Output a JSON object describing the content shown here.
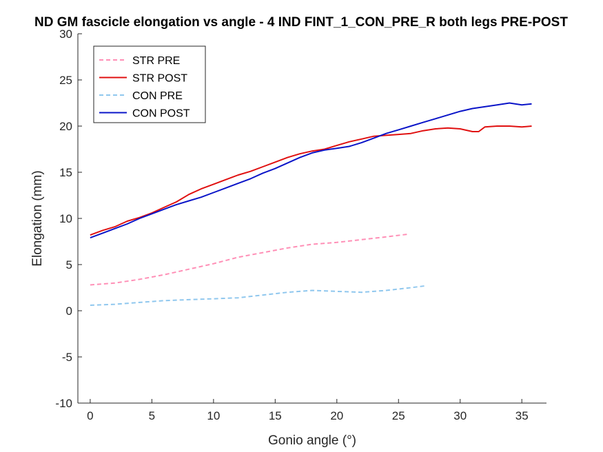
{
  "chart_data": {
    "type": "line",
    "title": "ND GM fascicle elongation vs angle - 4 IND FINT_1_CON_PRE_R both legs PRE-POST",
    "xlabel": "Gonio angle (°)",
    "ylabel": "Elongation (mm)",
    "xlim": [
      -1,
      37
    ],
    "ylim": [
      -10,
      30
    ],
    "xticks": [
      0,
      5,
      10,
      15,
      20,
      25,
      30,
      35
    ],
    "yticks": [
      -10,
      -5,
      0,
      5,
      10,
      15,
      20,
      25,
      30
    ],
    "grid": false,
    "legend_position": "top-left",
    "series": [
      {
        "name": "STR PRE",
        "color": "#ff8fb6",
        "style": "dashed",
        "x": [
          0,
          2,
          4,
          6,
          8,
          10,
          12,
          14,
          16,
          18,
          20,
          22,
          24,
          25.8
        ],
        "y": [
          2.8,
          3.0,
          3.4,
          3.9,
          4.5,
          5.1,
          5.8,
          6.3,
          6.8,
          7.2,
          7.4,
          7.7,
          8.0,
          8.3
        ]
      },
      {
        "name": "STR POST",
        "color": "#e01010",
        "style": "solid",
        "x": [
          0,
          1,
          2,
          3,
          4,
          5,
          6,
          7,
          8,
          9,
          10,
          11,
          12,
          13,
          14,
          15,
          16,
          17,
          18,
          19,
          20,
          21,
          22,
          23,
          24,
          25,
          26,
          27,
          28,
          29,
          30,
          31,
          31.5,
          32,
          33,
          34,
          35,
          35.8
        ],
        "y": [
          8.2,
          8.7,
          9.1,
          9.7,
          10.1,
          10.6,
          11.2,
          11.8,
          12.6,
          13.2,
          13.7,
          14.2,
          14.7,
          15.1,
          15.6,
          16.1,
          16.6,
          17.0,
          17.3,
          17.5,
          17.9,
          18.3,
          18.6,
          18.9,
          19.0,
          19.1,
          19.2,
          19.5,
          19.7,
          19.8,
          19.7,
          19.4,
          19.4,
          19.9,
          20.0,
          20.0,
          19.9,
          20.0
        ]
      },
      {
        "name": "CON PRE",
        "color": "#8fc7ee",
        "style": "dashed",
        "x": [
          0,
          2,
          4,
          6,
          8,
          10,
          12,
          14,
          16,
          18,
          20,
          22,
          24,
          26,
          27.2
        ],
        "y": [
          0.6,
          0.7,
          0.9,
          1.1,
          1.2,
          1.3,
          1.4,
          1.7,
          2.0,
          2.2,
          2.1,
          2.0,
          2.2,
          2.5,
          2.7
        ]
      },
      {
        "name": "CON POST",
        "color": "#0a14c8",
        "style": "solid",
        "x": [
          0,
          1,
          2,
          3,
          4,
          5,
          6,
          7,
          8,
          9,
          10,
          11,
          12,
          13,
          14,
          15,
          16,
          17,
          18,
          19,
          20,
          21,
          22,
          23,
          24,
          25,
          26,
          27,
          28,
          29,
          30,
          31,
          32,
          33,
          34,
          35,
          35.8
        ],
        "y": [
          7.9,
          8.4,
          8.9,
          9.4,
          10.0,
          10.5,
          11.0,
          11.5,
          11.9,
          12.3,
          12.8,
          13.3,
          13.8,
          14.3,
          14.9,
          15.4,
          16.0,
          16.6,
          17.1,
          17.4,
          17.6,
          17.8,
          18.2,
          18.7,
          19.2,
          19.6,
          20.0,
          20.4,
          20.8,
          21.2,
          21.6,
          21.9,
          22.1,
          22.3,
          22.5,
          22.3,
          22.4
        ]
      }
    ]
  }
}
